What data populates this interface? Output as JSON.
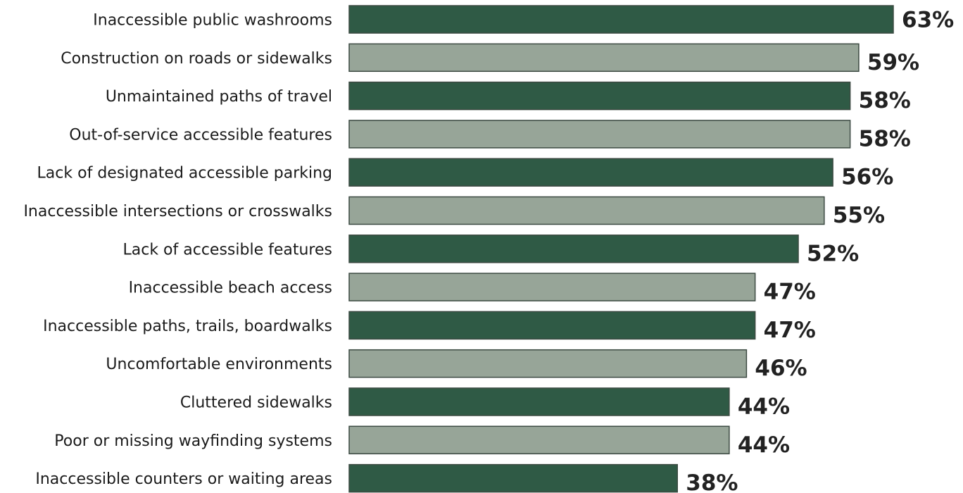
{
  "chart_data": {
    "type": "bar",
    "orientation": "horizontal",
    "title": "",
    "xlabel": "",
    "ylabel": "",
    "unit": "%",
    "xlim": [
      0,
      63
    ],
    "grid": false,
    "legend": "none",
    "colors": {
      "dark": "#2f5a45",
      "light": "#97a598"
    },
    "categories": [
      "Inaccessible public washrooms",
      "Construction on roads or sidewalks",
      "Unmaintained paths of travel",
      "Out-of-service accessible features",
      "Lack of designated accessible parking",
      "Inaccessible intersections or crosswalks",
      "Lack of accessible features",
      "Inaccessible beach access",
      "Inaccessible paths, trails, boardwalks",
      "Uncomfortable environments",
      "Cluttered sidewalks",
      "Poor or missing wayfinding systems",
      "Inaccessible counters or waiting areas"
    ],
    "values": [
      63,
      59,
      58,
      58,
      56,
      55,
      52,
      47,
      47,
      46,
      44,
      44,
      38
    ],
    "value_labels": [
      "63%",
      "59%",
      "58%",
      "58%",
      "56%",
      "55%",
      "52%",
      "47%",
      "47%",
      "46%",
      "44%",
      "44%",
      "38%"
    ]
  }
}
